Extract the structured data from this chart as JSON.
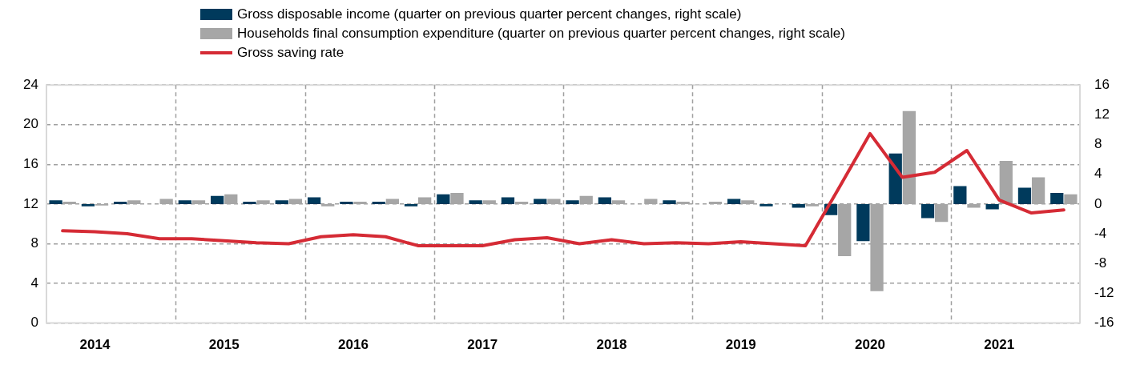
{
  "chart_data": {
    "type": "bar",
    "categories": [
      null,
      "2014",
      null,
      null,
      null,
      "2015",
      null,
      null,
      null,
      "2016",
      null,
      null,
      null,
      "2017",
      null,
      null,
      null,
      "2018",
      null,
      null,
      null,
      "2019",
      null,
      null,
      null,
      "2020",
      null,
      null,
      null,
      "2021",
      null,
      null
    ],
    "series": [
      {
        "name": "Gross disposable income (quarter on previous quarter percent changes, right scale)",
        "axis": "y2",
        "color": "#003a5c",
        "values": [
          0.5,
          -0.3,
          0.3,
          0.0,
          0.5,
          1.1,
          0.3,
          0.5,
          0.9,
          0.3,
          0.3,
          -0.3,
          1.3,
          0.5,
          0.9,
          0.7,
          0.5,
          0.9,
          0.0,
          0.5,
          0.0,
          0.7,
          -0.3,
          -0.5,
          -1.5,
          -5.0,
          6.8,
          -1.9,
          2.4,
          -0.7,
          2.2,
          1.5
        ]
      },
      {
        "name": "Households final consumption expenditure (quarter on previous quarter percent changes, right scale)",
        "axis": "y2",
        "color": "#a6a6a6",
        "values": [
          0.3,
          -0.2,
          0.5,
          0.7,
          0.5,
          1.3,
          0.5,
          0.7,
          -0.3,
          0.3,
          0.7,
          0.9,
          1.5,
          0.5,
          0.3,
          0.7,
          1.1,
          0.5,
          0.7,
          0.3,
          0.3,
          0.5,
          0.0,
          -0.3,
          -7.0,
          -11.7,
          12.5,
          -2.4,
          -0.5,
          5.8,
          3.6,
          1.3
        ]
      },
      {
        "name": "Gross saving rate",
        "type": "line",
        "axis": "y",
        "color": "#d52b35",
        "values": [
          9.3,
          9.2,
          9.0,
          8.5,
          8.5,
          8.3,
          8.1,
          8.0,
          8.7,
          8.9,
          8.7,
          7.8,
          7.8,
          7.8,
          8.4,
          8.6,
          8.0,
          8.4,
          8.0,
          8.1,
          8.0,
          8.2,
          8.0,
          7.8,
          13.4,
          19.1,
          14.7,
          15.2,
          17.4,
          12.4,
          11.1,
          11.4
        ]
      }
    ],
    "ylim": [
      0,
      24
    ],
    "yticks": [
      0,
      4,
      8,
      12,
      16,
      20,
      24
    ],
    "y2lim": [
      -16,
      16
    ],
    "y2ticks": [
      -16,
      -12,
      -8,
      -4,
      0,
      4,
      8,
      12,
      16
    ],
    "grid": true,
    "legend": "top",
    "marker": "none",
    "line_style": "solid"
  }
}
